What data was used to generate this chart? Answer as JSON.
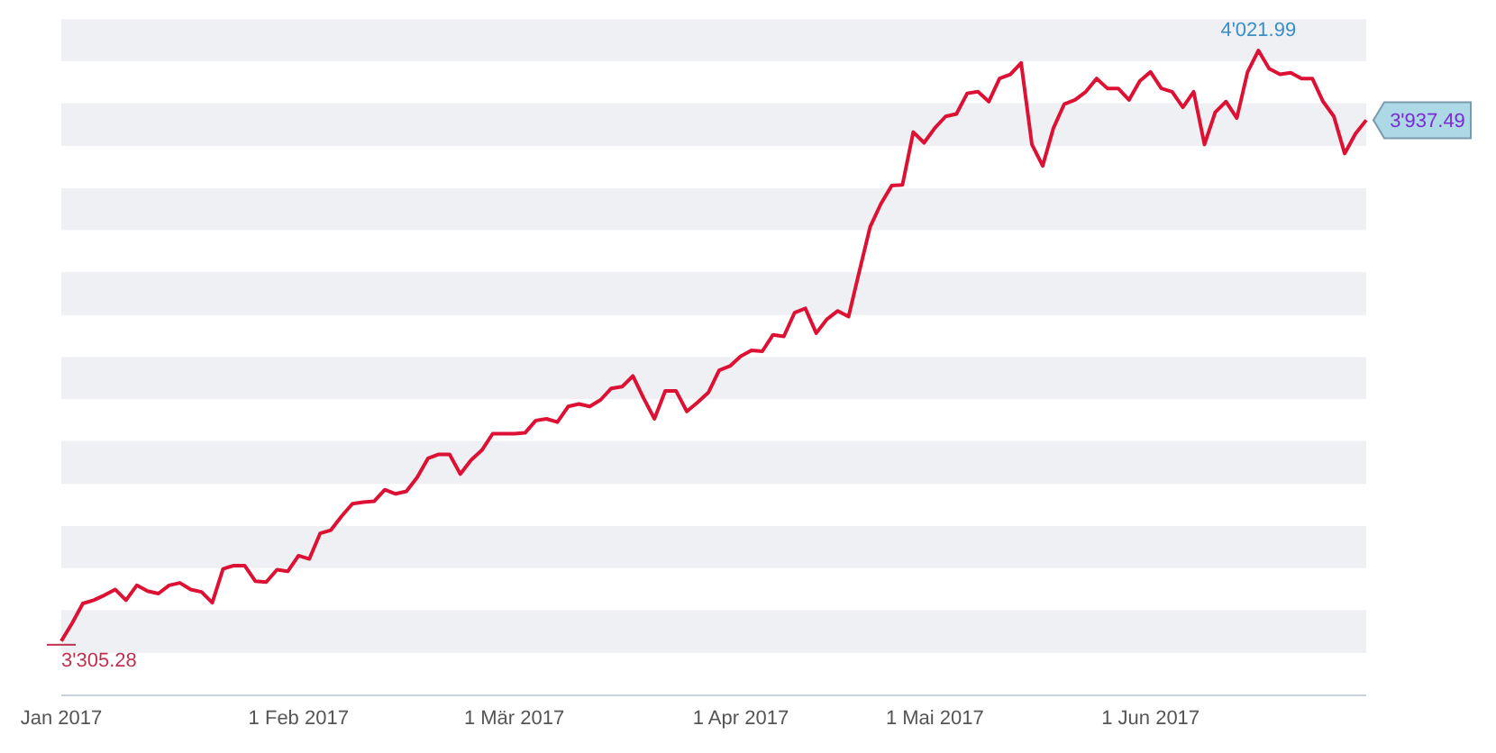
{
  "chart_data": {
    "type": "line",
    "categories": [
      "Jan 2017",
      null,
      null,
      null,
      null,
      null,
      null,
      null,
      null,
      null,
      null,
      null,
      null,
      null,
      null,
      null,
      null,
      null,
      null,
      null,
      null,
      null,
      "1 Feb 2017",
      null,
      null,
      null,
      null,
      null,
      null,
      null,
      null,
      null,
      null,
      null,
      null,
      null,
      null,
      null,
      null,
      null,
      null,
      null,
      "1 Mär 2017",
      null,
      null,
      null,
      null,
      null,
      null,
      null,
      null,
      null,
      null,
      null,
      null,
      null,
      null,
      null,
      null,
      null,
      null,
      null,
      null,
      "1 Apr 2017",
      null,
      null,
      null,
      null,
      null,
      null,
      null,
      null,
      null,
      null,
      null,
      null,
      null,
      null,
      null,
      null,
      null,
      "1 Mai 2017",
      null,
      null,
      null,
      null,
      null,
      null,
      null,
      null,
      null,
      null,
      null,
      null,
      null,
      null,
      null,
      null,
      null,
      null,
      null,
      "1 Jun 2017",
      null,
      null,
      null,
      null,
      null,
      null,
      null,
      null,
      null,
      null,
      null,
      null,
      null,
      null,
      null,
      null,
      null,
      null,
      null,
      null
    ],
    "series": [
      {
        "color": "#dd1133",
        "values": [
          3305.28,
          3327,
          3351,
          3355,
          3361,
          3368,
          3355,
          3373,
          3366,
          3363,
          3373,
          3376,
          3368,
          3365,
          3352,
          3393,
          3397,
          3397,
          3378,
          3377,
          3392,
          3390,
          3409,
          3405,
          3436,
          3440,
          3457,
          3472,
          3474,
          3475,
          3489,
          3484,
          3487,
          3504,
          3527,
          3532,
          3532,
          3508,
          3525,
          3537,
          3557,
          3557,
          3557,
          3558,
          3573,
          3575,
          3571,
          3590,
          3593,
          3590,
          3598,
          3612,
          3614,
          3627,
          3600,
          3575,
          3609,
          3609,
          3584,
          3595,
          3607,
          3634,
          3639,
          3651,
          3658,
          3657,
          3677,
          3675,
          3704,
          3709,
          3679,
          3696,
          3706,
          3699,
          3754,
          3808,
          3836,
          3858,
          3859,
          3923,
          3910,
          3928,
          3942,
          3945,
          3970,
          3972,
          3960,
          3988,
          3993,
          4007,
          3908,
          3882,
          3928,
          3957,
          3962,
          3972,
          3988,
          3976,
          3976,
          3962,
          3985,
          3996,
          3976,
          3972,
          3953,
          3972,
          3908,
          3947,
          3960,
          3940,
          3996,
          4021.99,
          4000,
          3993,
          3995,
          3988,
          3988,
          3960,
          3942,
          3897,
          3921,
          3937.49
        ],
        "value_labels": [
          "3'305.28",
          null,
          null,
          null,
          null,
          null,
          null,
          null,
          null,
          null,
          null,
          null,
          null,
          null,
          null,
          null,
          null,
          null,
          null,
          null,
          null,
          null,
          null,
          null,
          null,
          null,
          null,
          null,
          null,
          null,
          null,
          null,
          null,
          null,
          null,
          null,
          null,
          null,
          null,
          null,
          null,
          null,
          null,
          null,
          null,
          null,
          null,
          null,
          null,
          null,
          null,
          null,
          null,
          null,
          null,
          null,
          null,
          null,
          null,
          null,
          null,
          null,
          null,
          null,
          null,
          null,
          null,
          null,
          null,
          null,
          null,
          null,
          null,
          null,
          null,
          null,
          null,
          null,
          null,
          null,
          null,
          null,
          null,
          null,
          null,
          null,
          null,
          null,
          null,
          null,
          null,
          null,
          null,
          null,
          null,
          null,
          null,
          null,
          null,
          null,
          null,
          null,
          null,
          null,
          null,
          null,
          null,
          null,
          null,
          null,
          null,
          "4'021.99",
          null,
          null,
          null,
          null,
          null,
          null,
          null,
          null,
          null,
          "3'937.49"
        ]
      }
    ],
    "bands": [
      {
        "axis": "y",
        "from": 4009,
        "to": 4060,
        "color": "#eef0f3"
      },
      {
        "axis": "y",
        "from": 3906,
        "to": 3958,
        "color": "#eef0f3"
      },
      {
        "axis": "y",
        "from": 3804,
        "to": 3855,
        "color": "#eef0f3"
      },
      {
        "axis": "y",
        "from": 3701,
        "to": 3753,
        "color": "#eef0f3"
      },
      {
        "axis": "y",
        "from": 3599,
        "to": 3650,
        "color": "#eef0f3"
      },
      {
        "axis": "y",
        "from": 3496,
        "to": 3548,
        "color": "#eef0f3"
      },
      {
        "axis": "y",
        "from": 3394,
        "to": 3445,
        "color": "#eef0f3"
      },
      {
        "axis": "y",
        "from": 3291,
        "to": 3343,
        "color": "#eef0f3"
      }
    ],
    "tick_labels": "x"
  }
}
